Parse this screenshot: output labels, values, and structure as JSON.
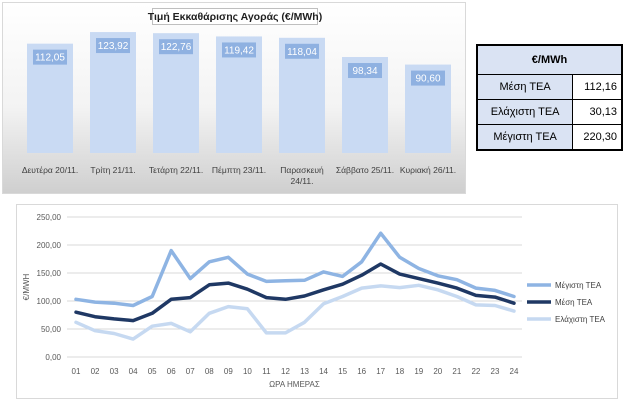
{
  "chart_data": [
    {
      "type": "bar",
      "title": "Τιμή Εκκαθάρισης Αγοράς (€/MWh)",
      "categories": [
        "Δευτέρα 20/11.",
        "Τρίτη 21/11.",
        "Τετάρτη 22/11.",
        "Πέμπτη 23/11.",
        "Παρασκευή 24/11.",
        "Σάββατο 25/11.",
        "Κυριακή 26/11."
      ],
      "values": [
        112.05,
        123.92,
        122.76,
        119.42,
        118.04,
        98.34,
        90.6
      ],
      "labels": [
        "112,05",
        "123,92",
        "122,76",
        "119,42",
        "118,04",
        "98,34",
        "90,60"
      ],
      "ylim": [
        0,
        140
      ],
      "colors": {
        "bar": "#c9daf3",
        "label_box": "#8fb1e1",
        "label_text": "#ffffff"
      }
    },
    {
      "type": "line",
      "x": [
        "01",
        "02",
        "03",
        "04",
        "05",
        "06",
        "07",
        "08",
        "09",
        "10",
        "11",
        "12",
        "13",
        "14",
        "15",
        "16",
        "17",
        "18",
        "19",
        "20",
        "21",
        "22",
        "23",
        "24"
      ],
      "xlabel": "ΩΡΑ ΗΜΕΡΑΣ",
      "ylabel": "€/MWH",
      "ylim": [
        0,
        250
      ],
      "yticks": [
        "0,00",
        "50,00",
        "100,00",
        "150,00",
        "200,00",
        "250,00"
      ],
      "legend_position": "right",
      "grid": true,
      "series": [
        {
          "name": "Μέγιστη ΤΕΑ",
          "color": "#8eb4e3",
          "values": [
            103,
            98,
            96,
            92,
            108,
            190,
            140,
            170,
            178,
            148,
            135,
            136,
            137,
            152,
            144,
            170,
            221,
            178,
            158,
            145,
            138,
            123,
            119,
            108
          ]
        },
        {
          "name": "Μέση ΤΕΑ",
          "color": "#1f3864",
          "values": [
            80,
            72,
            68,
            65,
            78,
            103,
            106,
            129,
            132,
            121,
            106,
            103,
            109,
            120,
            130,
            146,
            166,
            148,
            140,
            132,
            123,
            110,
            107,
            96
          ]
        },
        {
          "name": "Ελάχιστη ΤΕΑ",
          "color": "#c6d9f1",
          "values": [
            62,
            47,
            42,
            32,
            55,
            60,
            45,
            78,
            90,
            86,
            43,
            43,
            62,
            95,
            108,
            123,
            127,
            124,
            128,
            120,
            108,
            93,
            92,
            82
          ]
        }
      ]
    }
  ],
  "stats_table": {
    "header": "€/MWh",
    "rows": [
      {
        "label": "Μέση ΤΕΑ",
        "value": "112,16"
      },
      {
        "label": "Ελάχιστη ΤΕΑ",
        "value": "30,13"
      },
      {
        "label": "Μέγιστη ΤΕΑ",
        "value": "220,30"
      }
    ]
  }
}
